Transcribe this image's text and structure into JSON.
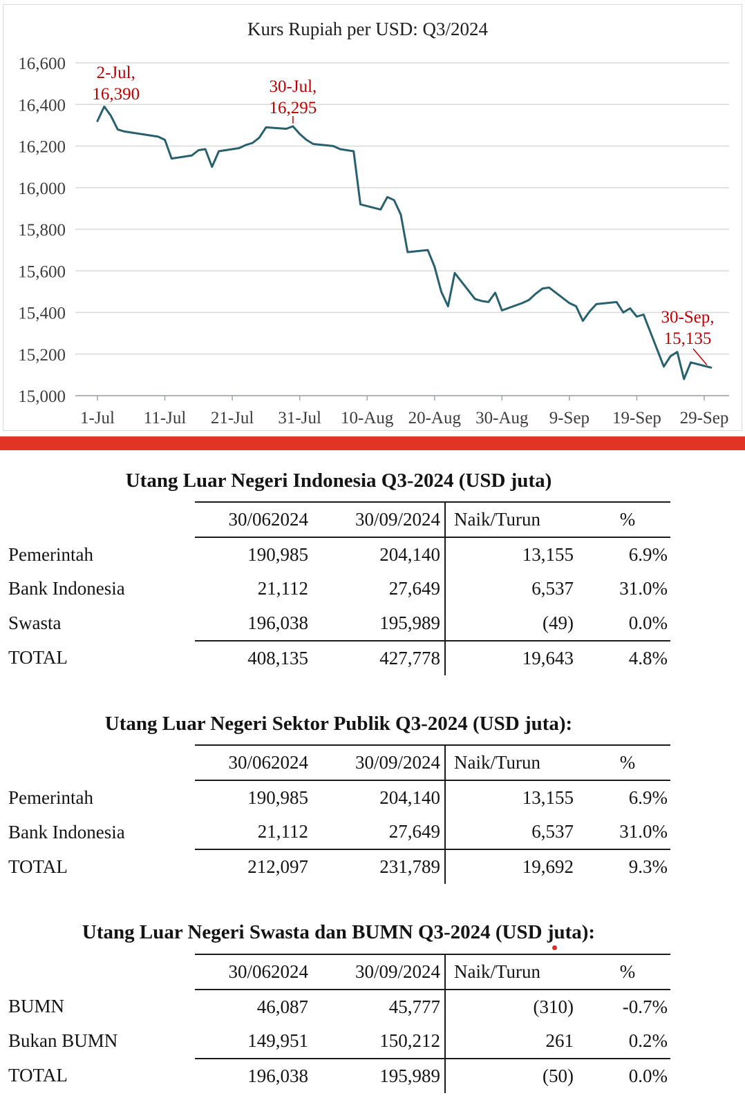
{
  "colors": {
    "red_bar": "#e23424"
  },
  "chart_data": {
    "type": "line",
    "title": "Kurs Rupiah per USD: Q3/2024",
    "xlabel": "",
    "ylabel": "",
    "ylim": [
      15000,
      16600
    ],
    "y_tick_step": 200,
    "grid": "horizontal",
    "legend": "none",
    "line_color": "#27606e",
    "annotation_color": "#c00000",
    "y_ticks": [
      {
        "value": 16600,
        "label": "16,600"
      },
      {
        "value": 16400,
        "label": "16,400"
      },
      {
        "value": 16200,
        "label": "16,200"
      },
      {
        "value": 16000,
        "label": "16,000"
      },
      {
        "value": 15800,
        "label": "15,800"
      },
      {
        "value": 15600,
        "label": "15,600"
      },
      {
        "value": 15400,
        "label": "15,400"
      },
      {
        "value": 15200,
        "label": "15,200"
      },
      {
        "value": 15000,
        "label": "15,000"
      }
    ],
    "x_ticks": [
      {
        "day": 0,
        "label": "1-Jul"
      },
      {
        "day": 10,
        "label": "11-Jul"
      },
      {
        "day": 20,
        "label": "21-Jul"
      },
      {
        "day": 30,
        "label": "31-Jul"
      },
      {
        "day": 40,
        "label": "10-Aug"
      },
      {
        "day": 50,
        "label": "20-Aug"
      },
      {
        "day": 60,
        "label": "30-Aug"
      },
      {
        "day": 70,
        "label": "9-Sep"
      },
      {
        "day": 80,
        "label": "19-Sep"
      },
      {
        "day": 90,
        "label": "29-Sep"
      }
    ],
    "annotations": [
      {
        "name": "start",
        "lines": [
          "2-Jul,",
          "16,390"
        ],
        "point": {
          "date": "2-Jul",
          "value": 16390
        }
      },
      {
        "name": "peak-july",
        "lines": [
          "30-Jul,",
          "16,295"
        ],
        "point": {
          "date": "30-Jul",
          "value": 16295
        }
      },
      {
        "name": "end",
        "lines": [
          "30-Sep,",
          "15,135"
        ],
        "point": {
          "date": "30-Sep",
          "value": 15135
        }
      }
    ],
    "point_format": [
      "date",
      "day_index",
      "value"
    ],
    "series": [
      {
        "name": "Kurs Rupiah per USD",
        "points": [
          [
            "1-Jul",
            0,
            16320
          ],
          [
            "2-Jul",
            1,
            16390
          ],
          [
            "3-Jul",
            2,
            16345
          ],
          [
            "4-Jul",
            3,
            16280
          ],
          [
            "5-Jul",
            4,
            16270
          ],
          [
            "8-Jul",
            7,
            16255
          ],
          [
            "9-Jul",
            8,
            16250
          ],
          [
            "10-Jul",
            9,
            16245
          ],
          [
            "11-Jul",
            10,
            16230
          ],
          [
            "12-Jul",
            11,
            16140
          ],
          [
            "15-Jul",
            14,
            16155
          ],
          [
            "16-Jul",
            15,
            16180
          ],
          [
            "17-Jul",
            16,
            16185
          ],
          [
            "18-Jul",
            17,
            16100
          ],
          [
            "19-Jul",
            18,
            16175
          ],
          [
            "22-Jul",
            21,
            16190
          ],
          [
            "23-Jul",
            22,
            16205
          ],
          [
            "24-Jul",
            23,
            16215
          ],
          [
            "25-Jul",
            24,
            16240
          ],
          [
            "26-Jul",
            25,
            16290
          ],
          [
            "29-Jul",
            28,
            16283
          ],
          [
            "30-Jul",
            29,
            16295
          ],
          [
            "31-Jul",
            30,
            16258
          ],
          [
            "1-Aug",
            31,
            16230
          ],
          [
            "2-Aug",
            32,
            16210
          ],
          [
            "5-Aug",
            35,
            16200
          ],
          [
            "6-Aug",
            36,
            16185
          ],
          [
            "7-Aug",
            37,
            16180
          ],
          [
            "8-Aug",
            38,
            16175
          ],
          [
            "9-Aug",
            39,
            15920
          ],
          [
            "12-Aug",
            42,
            15895
          ],
          [
            "13-Aug",
            43,
            15955
          ],
          [
            "14-Aug",
            44,
            15940
          ],
          [
            "15-Aug",
            45,
            15870
          ],
          [
            "16-Aug",
            46,
            15690
          ],
          [
            "19-Aug",
            49,
            15700
          ],
          [
            "20-Aug",
            50,
            15620
          ],
          [
            "21-Aug",
            51,
            15500
          ],
          [
            "22-Aug",
            52,
            15430
          ],
          [
            "23-Aug",
            53,
            15590
          ],
          [
            "26-Aug",
            56,
            15465
          ],
          [
            "27-Aug",
            57,
            15455
          ],
          [
            "28-Aug",
            58,
            15450
          ],
          [
            "29-Aug",
            59,
            15495
          ],
          [
            "30-Aug",
            60,
            15410
          ],
          [
            "2-Sep",
            63,
            15445
          ],
          [
            "3-Sep",
            64,
            15460
          ],
          [
            "4-Sep",
            65,
            15490
          ],
          [
            "5-Sep",
            66,
            15515
          ],
          [
            "6-Sep",
            67,
            15520
          ],
          [
            "9-Sep",
            70,
            15445
          ],
          [
            "10-Sep",
            71,
            15430
          ],
          [
            "11-Sep",
            72,
            15360
          ],
          [
            "12-Sep",
            73,
            15405
          ],
          [
            "13-Sep",
            74,
            15440
          ],
          [
            "16-Sep",
            77,
            15450
          ],
          [
            "17-Sep",
            78,
            15400
          ],
          [
            "18-Sep",
            79,
            15420
          ],
          [
            "19-Sep",
            80,
            15380
          ],
          [
            "20-Sep",
            81,
            15390
          ],
          [
            "23-Sep",
            84,
            15140
          ],
          [
            "24-Sep",
            85,
            15190
          ],
          [
            "25-Sep",
            86,
            15210
          ],
          [
            "26-Sep",
            87,
            15080
          ],
          [
            "27-Sep",
            88,
            15160
          ],
          [
            "30-Sep",
            91,
            15135
          ]
        ]
      }
    ]
  },
  "tables": [
    {
      "title": "Utang Luar Negeri Indonesia Q3-2024 (USD juta)",
      "columns": [
        "",
        "30/062024",
        "30/09/2024",
        "Naik/Turun",
        "%"
      ],
      "rows": [
        [
          "Pemerintah",
          "190,985",
          "204,140",
          "13,155",
          "6.9%"
        ],
        [
          "Bank Indonesia",
          "21,112",
          "27,649",
          "6,537",
          "31.0%"
        ],
        [
          "Swasta",
          "196,038",
          "195,989",
          "(49)",
          "0.0%"
        ],
        [
          "TOTAL",
          "408,135",
          "427,778",
          "19,643",
          "4.8%"
        ]
      ]
    },
    {
      "title": "Utang Luar Negeri Sektor Publik Q3-2024 (USD juta):",
      "columns": [
        "",
        "30/062024",
        "30/09/2024",
        "Naik/Turun",
        "%"
      ],
      "rows": [
        [
          "Pemerintah",
          "190,985",
          "204,140",
          "13,155",
          "6.9%"
        ],
        [
          "Bank Indonesia",
          "21,112",
          "27,649",
          "6,537",
          "31.0%"
        ],
        [
          "TOTAL",
          "212,097",
          "231,789",
          "19,692",
          "9.3%"
        ]
      ]
    },
    {
      "title": "Utang Luar Negeri Swasta dan BUMN Q3-2024 (USD juta):",
      "columns": [
        "",
        "30/062024",
        "30/09/2024",
        "Naik/Turun",
        "%"
      ],
      "rows": [
        [
          "BUMN",
          "46,087",
          "45,777",
          "(310)",
          "-0.7%"
        ],
        [
          "Bukan BUMN",
          "149,951",
          "150,212",
          "261",
          "0.2%"
        ],
        [
          "TOTAL",
          "196,038",
          "195,989",
          "(50)",
          "0.0%"
        ]
      ]
    }
  ]
}
